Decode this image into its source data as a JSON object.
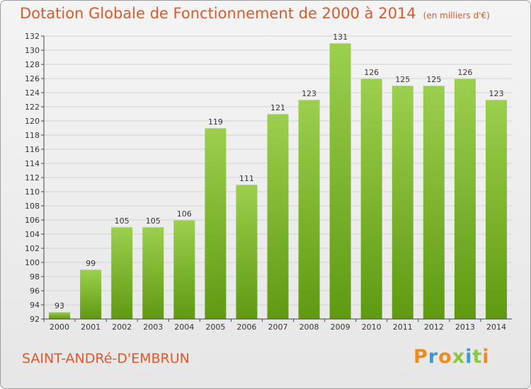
{
  "header": {
    "title": "Dotation Globale de Fonctionnement de 2000 à 2014",
    "subtitle": "(en milliers d'€)"
  },
  "footer": {
    "commune": "SAINT-ANDRé-D'EMBRUN",
    "logo_text": "Proxiti",
    "logo_colors": [
      "#f08a1c",
      "#3a9ad9",
      "#f08a1c",
      "#8dc63f",
      "#3a9ad9",
      "#8dc63f",
      "#f08a1c"
    ]
  },
  "colors": {
    "bar_light": "#9ccf4e",
    "bar_dark": "#5f9a12",
    "grid": "#d2d2d2",
    "axis": "#444444",
    "text": "#333333",
    "accent": "#e0592a"
  },
  "chart_data": {
    "type": "bar",
    "title": "Dotation Globale de Fonctionnement de 2000 à 2014",
    "subtitle": "(en milliers d'€)",
    "categories": [
      "2000",
      "2001",
      "2002",
      "2003",
      "2004",
      "2005",
      "2006",
      "2007",
      "2008",
      "2009",
      "2010",
      "2011",
      "2012",
      "2013",
      "2014"
    ],
    "values": [
      93,
      99,
      105,
      105,
      106,
      119,
      111,
      121,
      123,
      131,
      126,
      125,
      125,
      126,
      123
    ],
    "data_labels": [
      "93",
      "99",
      "105",
      "105",
      "106",
      "119",
      "111",
      "121",
      "123",
      "131",
      "126",
      "125",
      "125",
      "126",
      "123"
    ],
    "ylim": [
      92,
      132
    ],
    "yticks": [
      92,
      94,
      96,
      98,
      100,
      102,
      104,
      106,
      108,
      110,
      112,
      114,
      116,
      118,
      120,
      122,
      124,
      126,
      128,
      130,
      132
    ],
    "xlabel": "",
    "ylabel": "",
    "grid": true,
    "legend": "none"
  }
}
